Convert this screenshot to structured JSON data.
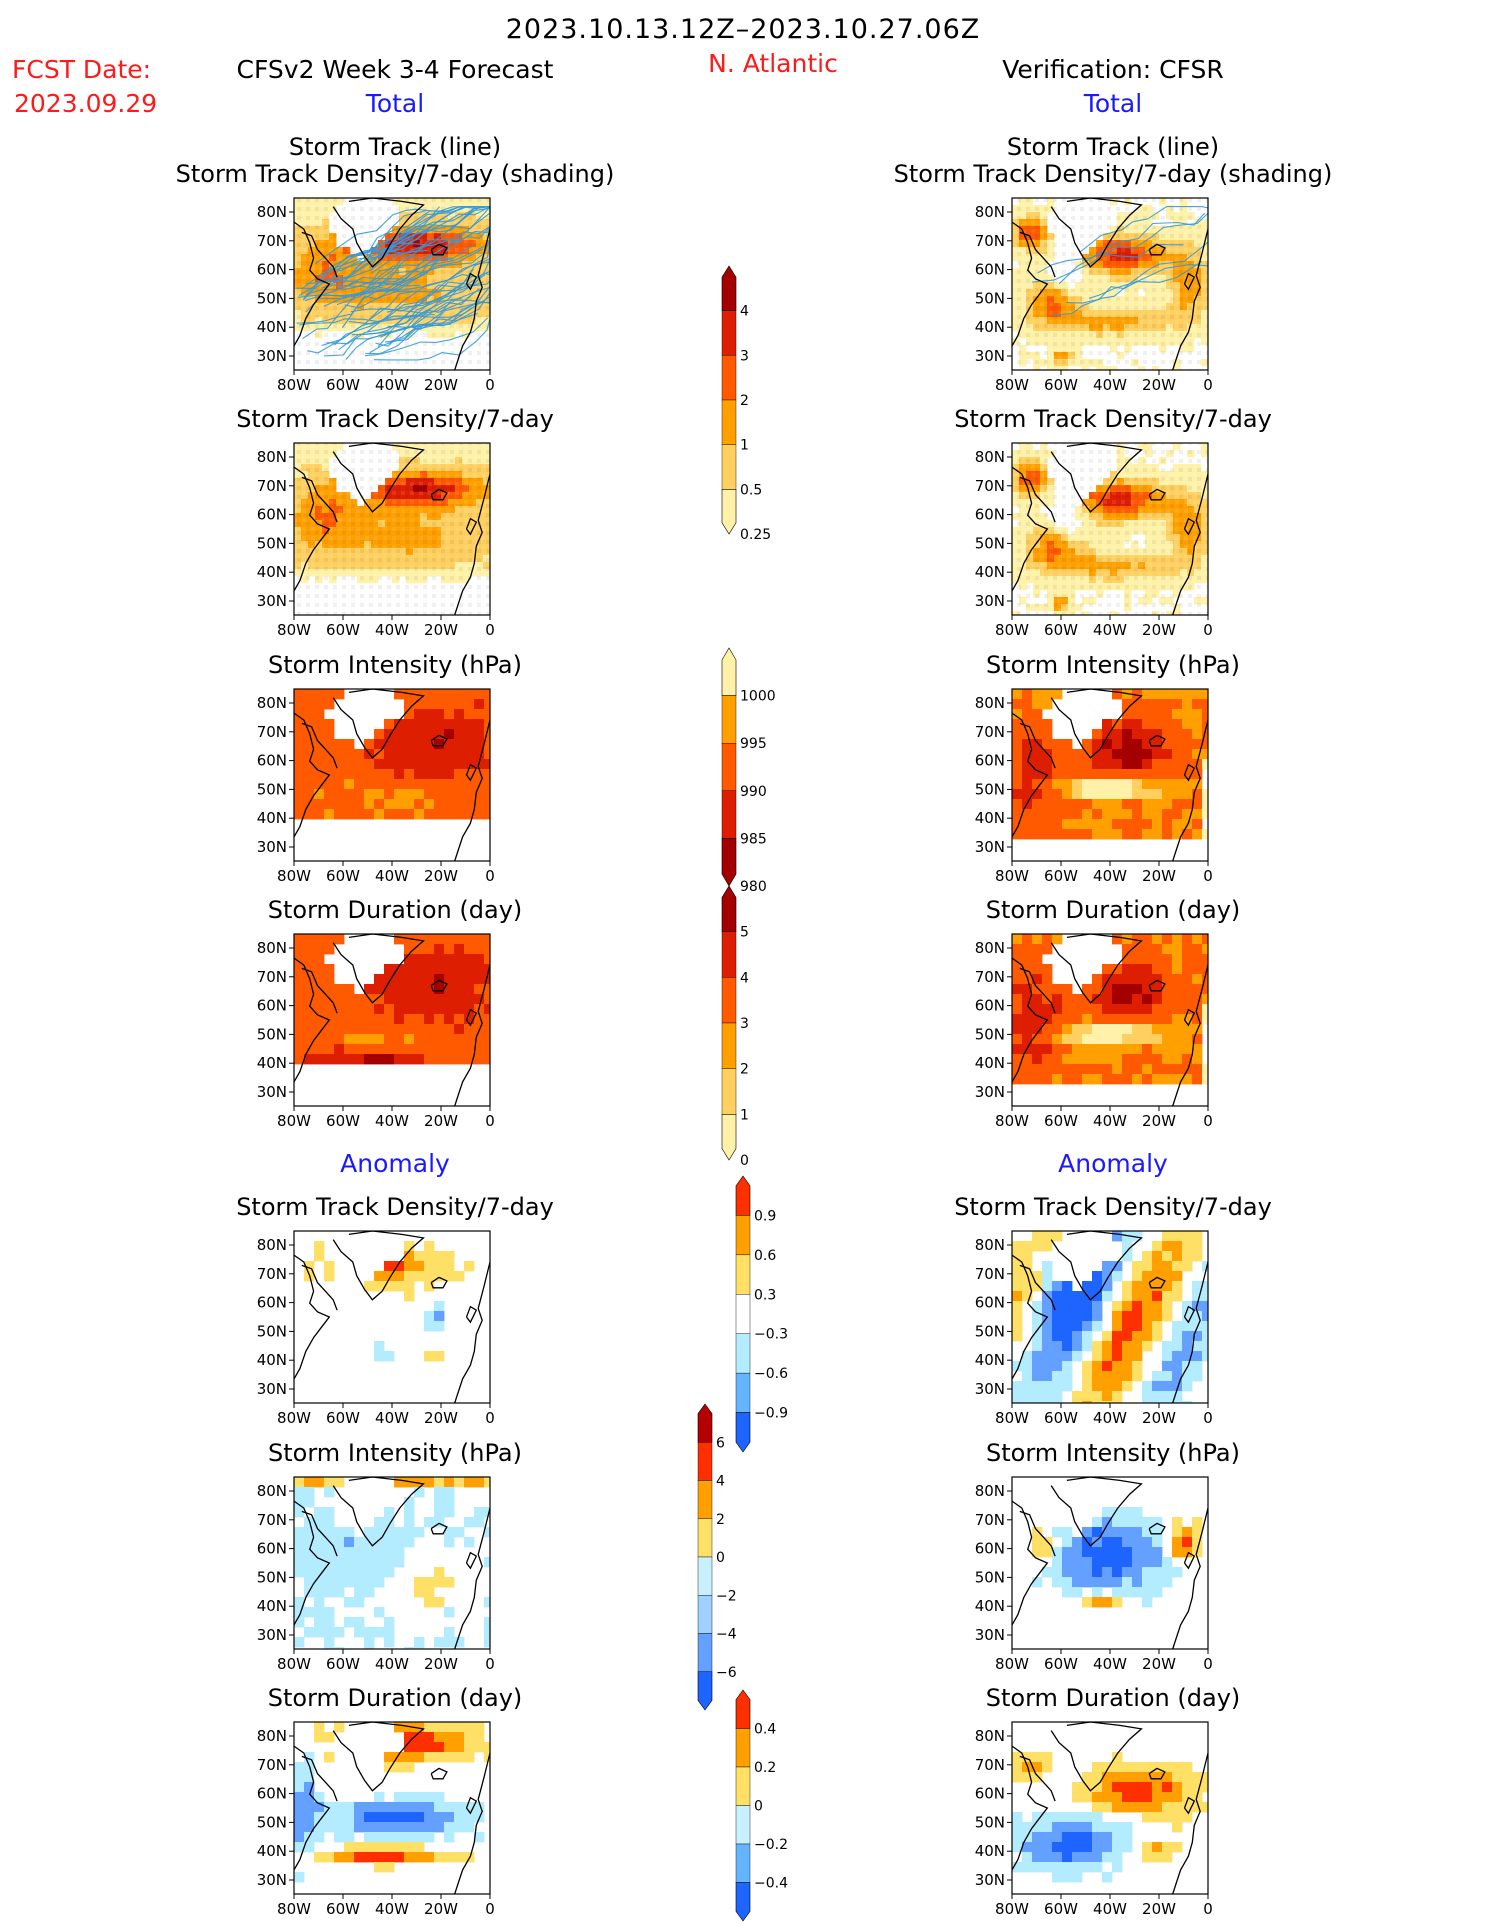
{
  "header": {
    "period": "2023.10.13.12Z–2023.10.27.06Z",
    "fcst_label": "FCST Date:",
    "fcst_date": "2023.09.29",
    "model_title": "CFSv2 Week 3-4 Forecast",
    "region": "N. Atlantic",
    "verification": "Verification: CFSR"
  },
  "sections": {
    "total_label": "Total",
    "anomaly_label": "Anomaly"
  },
  "panel_titles": {
    "track_line": "Storm Track (line)",
    "track_shading": "Storm Track Density/7-day (shading)",
    "density": "Storm Track Density/7-day",
    "intensity": "Storm Intensity (hPa)",
    "duration": "Storm Duration (day)"
  },
  "axes": {
    "lat_ticks": [
      "80N",
      "70N",
      "60N",
      "50N",
      "40N",
      "30N"
    ],
    "lon_ticks": [
      "80W",
      "60W",
      "40W",
      "20W",
      "0"
    ]
  },
  "colorbars": [
    {
      "id": "density_total",
      "labels": [
        "4",
        "3",
        "2",
        "1",
        "0.5",
        "0.25"
      ],
      "colors": [
        "#a50000",
        "#dd1e00",
        "#ff5a00",
        "#ffa000",
        "#ffd060",
        "#fff2a8"
      ]
    },
    {
      "id": "intensity_total",
      "labels": [
        "1000",
        "995",
        "990",
        "985",
        "980"
      ],
      "colors": [
        "#fff2a8",
        "#ffa000",
        "#ff5a00",
        "#dd1e00",
        "#a50000"
      ]
    },
    {
      "id": "duration_total",
      "labels": [
        "5",
        "4",
        "3",
        "2",
        "1",
        "0"
      ],
      "colors": [
        "#a50000",
        "#dd1e00",
        "#ff5a00",
        "#ffa000",
        "#ffd060",
        "#fff2a8"
      ]
    },
    {
      "id": "density_anom",
      "labels": [
        "0.9",
        "0.6",
        "0.3",
        "−0.3",
        "−0.6",
        "−0.9"
      ],
      "colors": [
        "#ff3000",
        "#ffa000",
        "#ffe066",
        "#ffffff",
        "#b4ecff",
        "#64b4ff",
        "#1e64ff"
      ]
    },
    {
      "id": "intensity_anom",
      "labels": [
        "6",
        "4",
        "2",
        "0",
        "−2",
        "−4",
        "−6"
      ],
      "colors": [
        "#b40000",
        "#ff3000",
        "#ffa000",
        "#ffe066",
        "#c8f0ff",
        "#a0d0ff",
        "#64a0ff",
        "#1e64ff"
      ]
    },
    {
      "id": "duration_anom",
      "labels": [
        "0.4",
        "0.2",
        "0",
        "−0.2",
        "−0.4"
      ],
      "colors": [
        "#ff3000",
        "#ffa000",
        "#ffe066",
        "#c8f0ff",
        "#64b4ff",
        "#1e64ff"
      ]
    }
  ],
  "colors": {
    "track_line": "#3399dd",
    "coastline": "#000000"
  }
}
